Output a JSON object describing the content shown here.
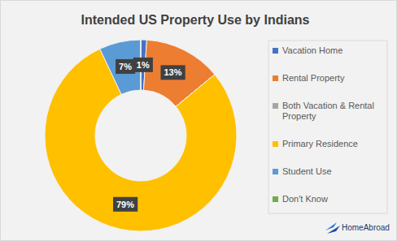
{
  "chart_data": {
    "type": "donut",
    "title": "Intended US Property Use by Indians",
    "categories": [
      "Vacation Home",
      "Rental Property",
      "Both Vacation & Rental Property",
      "Primary Residence",
      "Student Use",
      "Don't Know"
    ],
    "values": [
      1,
      13,
      0,
      79,
      7,
      0
    ],
    "value_labels": [
      "1%",
      "13%",
      null,
      "79%",
      "7%",
      null
    ],
    "colors": [
      "#4472c4",
      "#ed7d31",
      "#a5a5a5",
      "#ffc000",
      "#5b9bd5",
      "#70ad47"
    ],
    "data_labels": true,
    "legend": "right",
    "annotations": [
      "HomeAbroad"
    ]
  }
}
